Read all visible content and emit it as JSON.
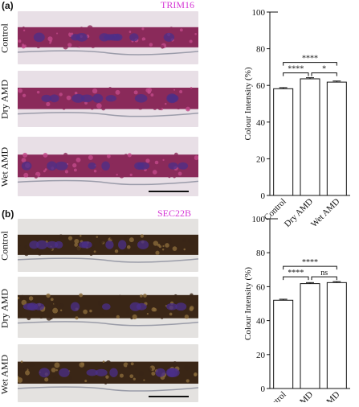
{
  "panels": [
    {
      "letter": "(a)",
      "stain": "TRIM16",
      "rows": [
        "Control",
        "Dry AMD",
        "Wet AMD"
      ],
      "colors": {
        "band": "#8a2a5a",
        "bandLight": "#c24a8a",
        "nuclei": "#4b2f8a",
        "bg": "#e8dfe6"
      }
    },
    {
      "letter": "(b)",
      "stain": "SEC22B",
      "rows": [
        "Control",
        "Dry AMD",
        "Wet AMD"
      ],
      "colors": {
        "band": "#3a2616",
        "bandLight": "#8a6a3a",
        "nuclei": "#4b2f8a",
        "bg": "#e4e2e0"
      }
    }
  ],
  "chart_data": [
    {
      "type": "bar",
      "categories": [
        "Control",
        "Dry AMD",
        "Wet AMD"
      ],
      "values": [
        58.2,
        63.6,
        61.8
      ],
      "errors": [
        0.6,
        0.6,
        0.6
      ],
      "ylabel": "Colour Intensity (%)",
      "ylim": [
        0,
        100
      ],
      "yticks": [
        0,
        20,
        40,
        60,
        80,
        100
      ],
      "significance": [
        {
          "from": 0,
          "to": 1,
          "label": "****"
        },
        {
          "from": 1,
          "to": 2,
          "label": "*"
        },
        {
          "from": 0,
          "to": 2,
          "label": "****"
        }
      ]
    },
    {
      "type": "bar",
      "categories": [
        "Control",
        "Dry AMD",
        "Wet AMD"
      ],
      "values": [
        52.0,
        61.8,
        62.4
      ],
      "errors": [
        0.6,
        0.6,
        0.6
      ],
      "ylabel": "Colour Intensity (%)",
      "ylim": [
        0,
        100
      ],
      "yticks": [
        0,
        20,
        40,
        60,
        80,
        100
      ],
      "significance": [
        {
          "from": 0,
          "to": 1,
          "label": "****"
        },
        {
          "from": 1,
          "to": 2,
          "label": "ns"
        },
        {
          "from": 0,
          "to": 2,
          "label": "****"
        }
      ]
    }
  ]
}
